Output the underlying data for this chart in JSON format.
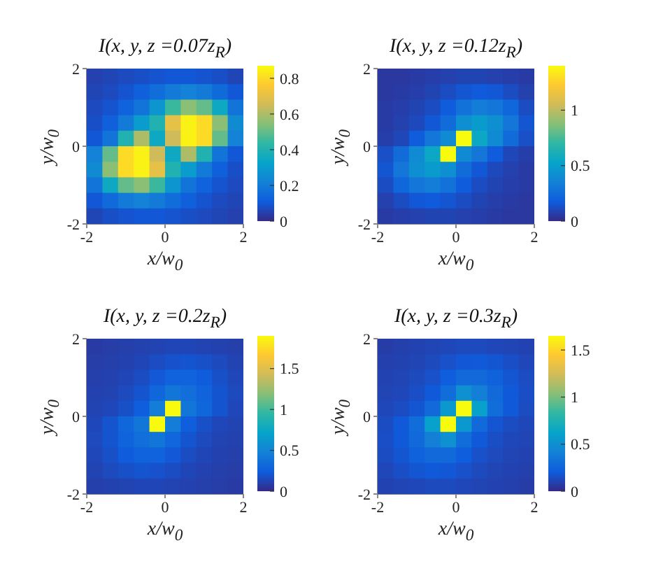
{
  "chart_data": [
    {
      "type": "heatmap",
      "title": "I(x, y, z =0.07z$_{R}$)",
      "xlabel": "x/w$_{0}$",
      "ylabel": "y/w$_{0}$",
      "xlim": [
        -2,
        2
      ],
      "xticks": [
        -2,
        0,
        2
      ],
      "ylim": [
        -2,
        2
      ],
      "yticks": [
        -2,
        0,
        2
      ],
      "clim": [
        0,
        0.87
      ],
      "cticks": [
        0,
        0.2,
        0.4,
        0.6,
        0.8
      ],
      "cells": [
        [
          0.05,
          0.06,
          0.07,
          0.08,
          0.09,
          0.1,
          0.1,
          0.09,
          0.08,
          0.06
        ],
        [
          0.06,
          0.07,
          0.09,
          0.12,
          0.16,
          0.2,
          0.22,
          0.2,
          0.15,
          0.1
        ],
        [
          0.07,
          0.09,
          0.13,
          0.18,
          0.28,
          0.45,
          0.55,
          0.5,
          0.35,
          0.18
        ],
        [
          0.08,
          0.12,
          0.2,
          0.3,
          0.4,
          0.7,
          0.85,
          0.8,
          0.55,
          0.25
        ],
        [
          0.1,
          0.18,
          0.4,
          0.6,
          0.35,
          0.65,
          0.85,
          0.8,
          0.5,
          0.22
        ],
        [
          0.22,
          0.5,
          0.8,
          0.85,
          0.65,
          0.35,
          0.6,
          0.4,
          0.18,
          0.1
        ],
        [
          0.25,
          0.55,
          0.8,
          0.85,
          0.7,
          0.4,
          0.3,
          0.2,
          0.12,
          0.08
        ],
        [
          0.18,
          0.35,
          0.5,
          0.55,
          0.45,
          0.28,
          0.18,
          0.13,
          0.09,
          0.07
        ],
        [
          0.1,
          0.15,
          0.2,
          0.22,
          0.2,
          0.16,
          0.12,
          0.09,
          0.07,
          0.06
        ],
        [
          0.06,
          0.08,
          0.09,
          0.1,
          0.1,
          0.09,
          0.08,
          0.07,
          0.06,
          0.05
        ]
      ]
    },
    {
      "type": "heatmap",
      "title": "I(x, y, z =0.12z$_{R}$)",
      "xlabel": "x/w$_{0}$",
      "ylabel": "y/w$_{0}$",
      "xlim": [
        -2,
        2
      ],
      "xticks": [
        -2,
        0,
        2
      ],
      "ylim": [
        -2,
        2
      ],
      "yticks": [
        -2,
        0,
        2
      ],
      "clim": [
        0,
        1.4
      ],
      "cticks": [
        0,
        0.5,
        1
      ],
      "cells": [
        [
          0.05,
          0.05,
          0.06,
          0.07,
          0.08,
          0.09,
          0.09,
          0.08,
          0.07,
          0.06
        ],
        [
          0.05,
          0.06,
          0.07,
          0.09,
          0.12,
          0.15,
          0.17,
          0.16,
          0.12,
          0.08
        ],
        [
          0.06,
          0.07,
          0.09,
          0.12,
          0.18,
          0.28,
          0.33,
          0.3,
          0.22,
          0.12
        ],
        [
          0.06,
          0.08,
          0.11,
          0.16,
          0.25,
          0.42,
          0.48,
          0.42,
          0.3,
          0.15
        ],
        [
          0.07,
          0.1,
          0.18,
          0.3,
          0.4,
          1.4,
          0.55,
          0.4,
          0.25,
          0.13
        ],
        [
          0.13,
          0.25,
          0.4,
          0.55,
          1.4,
          0.4,
          0.3,
          0.18,
          0.1,
          0.07
        ],
        [
          0.15,
          0.3,
          0.42,
          0.48,
          0.42,
          0.25,
          0.16,
          0.11,
          0.08,
          0.06
        ],
        [
          0.12,
          0.22,
          0.3,
          0.33,
          0.28,
          0.18,
          0.12,
          0.09,
          0.07,
          0.06
        ],
        [
          0.08,
          0.12,
          0.16,
          0.17,
          0.15,
          0.12,
          0.09,
          0.07,
          0.06,
          0.05
        ],
        [
          0.06,
          0.07,
          0.08,
          0.09,
          0.09,
          0.08,
          0.07,
          0.06,
          0.05,
          0.05
        ]
      ]
    },
    {
      "type": "heatmap",
      "title": "I(x, y, z =0.2z$_{R}$)",
      "xlabel": "x/w$_{0}$",
      "ylabel": "y/w$_{0}$",
      "xlim": [
        -2,
        2
      ],
      "xticks": [
        -2,
        0,
        2
      ],
      "ylim": [
        -2,
        2
      ],
      "yticks": [
        -2,
        0,
        2
      ],
      "clim": [
        0,
        1.9
      ],
      "cticks": [
        0,
        0.5,
        1,
        1.5
      ],
      "cells": [
        [
          0.08,
          0.09,
          0.1,
          0.11,
          0.12,
          0.13,
          0.13,
          0.12,
          0.11,
          0.1
        ],
        [
          0.09,
          0.1,
          0.11,
          0.13,
          0.16,
          0.19,
          0.2,
          0.18,
          0.15,
          0.12
        ],
        [
          0.1,
          0.11,
          0.13,
          0.16,
          0.22,
          0.28,
          0.28,
          0.24,
          0.18,
          0.14
        ],
        [
          0.11,
          0.12,
          0.15,
          0.2,
          0.3,
          0.4,
          0.35,
          0.28,
          0.2,
          0.15
        ],
        [
          0.12,
          0.14,
          0.18,
          0.25,
          0.45,
          1.9,
          0.4,
          0.3,
          0.2,
          0.14
        ],
        [
          0.14,
          0.2,
          0.3,
          0.4,
          1.9,
          0.45,
          0.25,
          0.18,
          0.14,
          0.12
        ],
        [
          0.15,
          0.2,
          0.28,
          0.35,
          0.4,
          0.3,
          0.2,
          0.15,
          0.12,
          0.11
        ],
        [
          0.14,
          0.18,
          0.24,
          0.28,
          0.28,
          0.22,
          0.16,
          0.13,
          0.11,
          0.1
        ],
        [
          0.12,
          0.15,
          0.18,
          0.2,
          0.19,
          0.16,
          0.13,
          0.11,
          0.1,
          0.09
        ],
        [
          0.1,
          0.11,
          0.12,
          0.13,
          0.13,
          0.12,
          0.11,
          0.1,
          0.09,
          0.08
        ]
      ]
    },
    {
      "type": "heatmap",
      "title": "I(x, y, z =0.3z$_{R}$)",
      "xlabel": "x/w$_{0}$",
      "ylabel": "y/w$_{0}$",
      "xlim": [
        -2,
        2
      ],
      "xticks": [
        -2,
        0,
        2
      ],
      "ylim": [
        -2,
        2
      ],
      "yticks": [
        -2,
        0,
        2
      ],
      "clim": [
        0,
        1.65
      ],
      "cticks": [
        0,
        0.5,
        1,
        1.5
      ],
      "cells": [
        [
          0.08,
          0.09,
          0.1,
          0.11,
          0.12,
          0.13,
          0.13,
          0.12,
          0.11,
          0.1
        ],
        [
          0.09,
          0.1,
          0.11,
          0.13,
          0.16,
          0.19,
          0.2,
          0.18,
          0.15,
          0.12
        ],
        [
          0.1,
          0.11,
          0.13,
          0.16,
          0.22,
          0.28,
          0.28,
          0.24,
          0.18,
          0.14
        ],
        [
          0.11,
          0.12,
          0.15,
          0.2,
          0.3,
          0.5,
          0.4,
          0.28,
          0.2,
          0.15
        ],
        [
          0.12,
          0.14,
          0.18,
          0.28,
          0.55,
          1.65,
          0.6,
          0.3,
          0.2,
          0.14
        ],
        [
          0.14,
          0.2,
          0.3,
          0.6,
          1.65,
          0.55,
          0.28,
          0.18,
          0.14,
          0.12
        ],
        [
          0.15,
          0.2,
          0.28,
          0.4,
          0.5,
          0.3,
          0.2,
          0.15,
          0.12,
          0.11
        ],
        [
          0.14,
          0.18,
          0.24,
          0.28,
          0.28,
          0.22,
          0.16,
          0.13,
          0.11,
          0.1
        ],
        [
          0.12,
          0.15,
          0.18,
          0.2,
          0.19,
          0.16,
          0.13,
          0.11,
          0.1,
          0.09
        ],
        [
          0.1,
          0.11,
          0.12,
          0.13,
          0.13,
          0.12,
          0.11,
          0.1,
          0.09,
          0.08
        ]
      ]
    }
  ]
}
